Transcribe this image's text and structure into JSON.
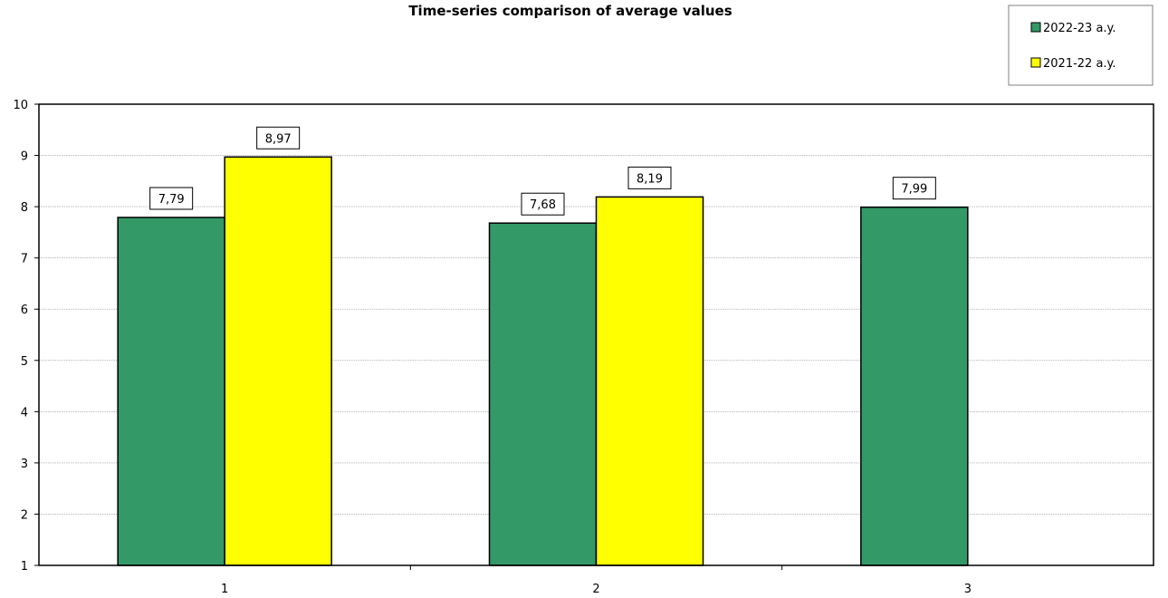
{
  "chart_data": {
    "type": "bar",
    "title": "Time-series comparison of average values",
    "xlabel": "",
    "ylabel": "",
    "categories": [
      "1",
      "2",
      "3"
    ],
    "series": [
      {
        "name": "2022-23 a.y.",
        "color": "#339966",
        "values": [
          7.79,
          7.68,
          7.99
        ],
        "labels": [
          "7,79",
          "7,68",
          "7,99"
        ]
      },
      {
        "name": "2021-22 a.y.",
        "color": "#ffff00",
        "values": [
          8.97,
          8.19,
          null
        ],
        "labels": [
          "8,97",
          "8,19",
          ""
        ]
      }
    ],
    "ylim": [
      1,
      10
    ],
    "yticks": [
      "1",
      "2",
      "3",
      "4",
      "5",
      "6",
      "7",
      "8",
      "9",
      "10"
    ],
    "grid": true,
    "legend_position": "top-right"
  }
}
